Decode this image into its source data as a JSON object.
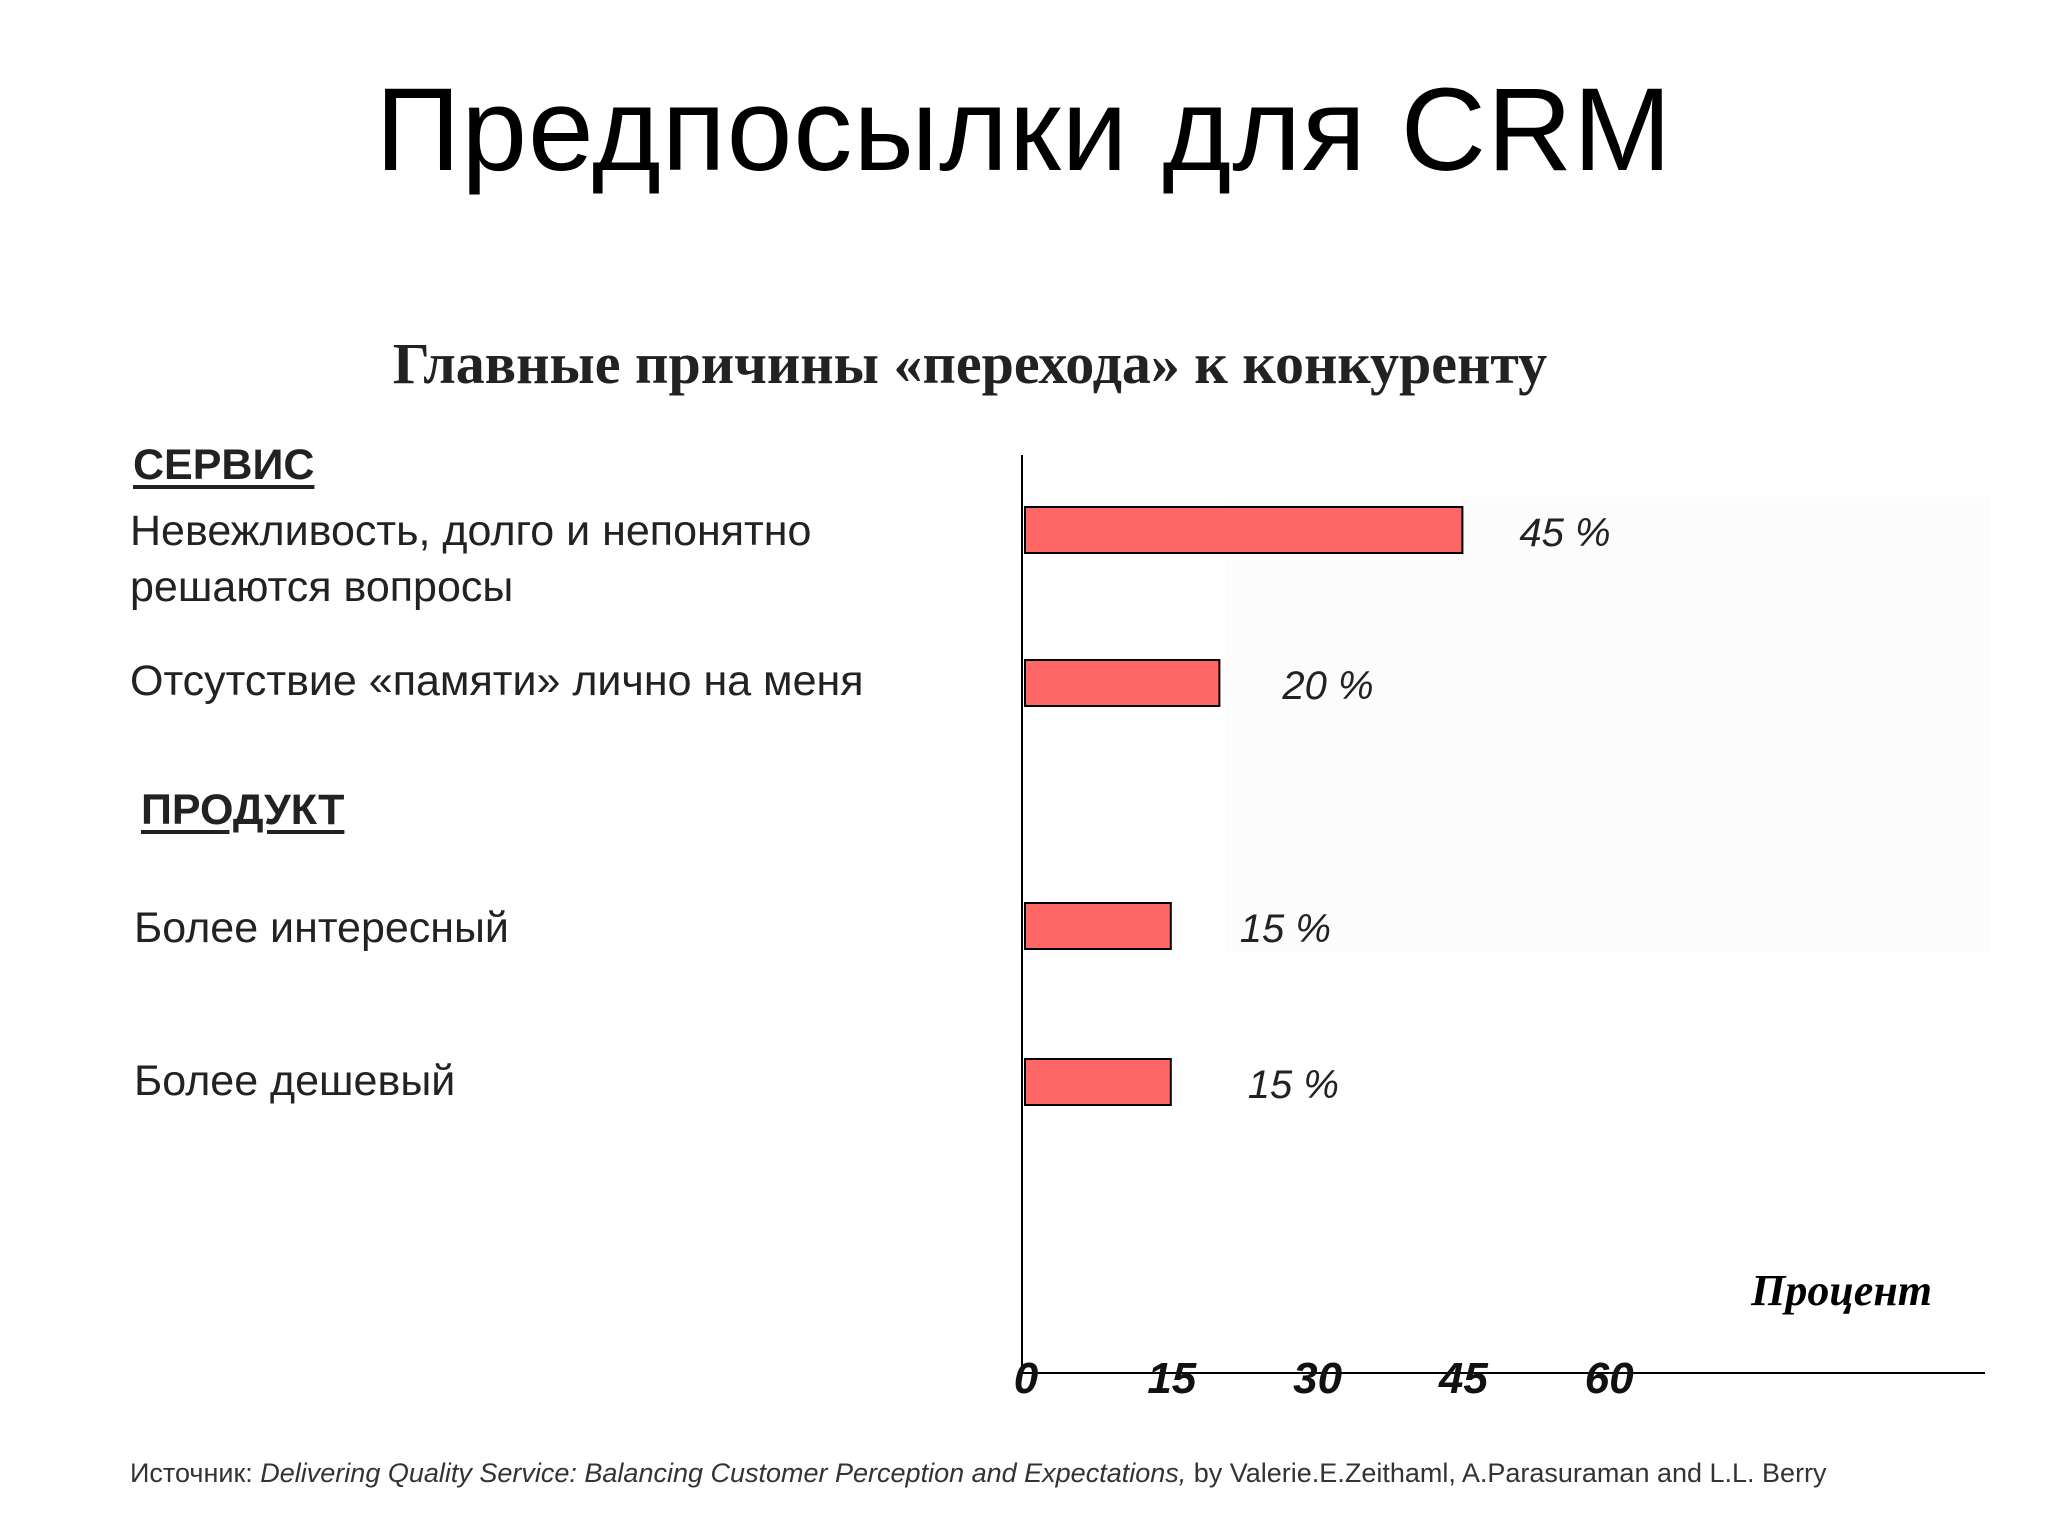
{
  "slide": {
    "title": "Предпосылки для CRM"
  },
  "chart_data": {
    "type": "bar",
    "orientation": "horizontal",
    "title": "Главные причины «перехода» к конкуренту",
    "xlabel": "Процент",
    "xlim": [
      0,
      75
    ],
    "xticks": [
      "0",
      "15",
      "30",
      "45",
      "60"
    ],
    "bar_color": "#ff6666",
    "groups": [
      {
        "name": "СЕРВИС",
        "items": [
          {
            "label": "Невежливость, долго и непонятно решаются вопросы",
            "value": 45,
            "value_label": "45 %"
          },
          {
            "label": "Отсутствие «памяти» лично на меня",
            "value": 20,
            "value_label": "20 %"
          }
        ]
      },
      {
        "name": "ПРОДУКТ",
        "items": [
          {
            "label": "Более интересный",
            "value": 15,
            "value_label": "15 %"
          },
          {
            "label": "Более дешевый",
            "value": 15,
            "value_label": "15 %"
          }
        ]
      }
    ]
  },
  "source": {
    "prefix": "Источник: ",
    "title": "Delivering Quality Service: Balancing Customer Perception and Expectations,",
    "authors": " by Valerie.E.Zeithaml, A.Parasuraman and L.L. Berry"
  }
}
